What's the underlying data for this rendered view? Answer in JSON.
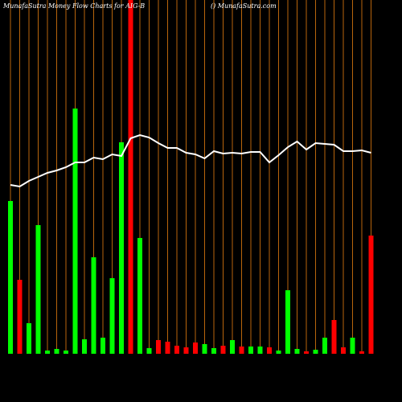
{
  "chart_data": {
    "type": "bar",
    "title": "MunafaSutra  Money Flow  Charts for AIG-B",
    "subtitle": "() MunafaSutra.com",
    "values": [
      190,
      92,
      38,
      160,
      4,
      6,
      4,
      305,
      18,
      120,
      20,
      94,
      263,
      445,
      144,
      7,
      17,
      15,
      10,
      8,
      14,
      12,
      7,
      10,
      17,
      9,
      9,
      9,
      8,
      4,
      79,
      6,
      3,
      5,
      20,
      42,
      8,
      20,
      3,
      147
    ],
    "colors": [
      "#00ff00",
      "#ff0000",
      "#00ff00",
      "#00ff00",
      "#00ff00",
      "#00ff00",
      "#00ff00",
      "#00ff00",
      "#00ff00",
      "#00ff00",
      "#00ff00",
      "#00ff00",
      "#00ff00",
      "#ff0000",
      "#00ff00",
      "#00ff00",
      "#ff0000",
      "#ff0000",
      "#ff0000",
      "#ff0000",
      "#ff0000",
      "#00ff00",
      "#00ff00",
      "#ff0000",
      "#00ff00",
      "#ff0000",
      "#00ff00",
      "#00ff00",
      "#ff0000",
      "#00ff00",
      "#00ff00",
      "#00ff00",
      "#ff0000",
      "#00ff00",
      "#00ff00",
      "#ff0000",
      "#ff0000",
      "#00ff00",
      "#ff0000",
      "#ff0000"
    ],
    "line_values": [
      210,
      208,
      215,
      220,
      225,
      228,
      232,
      238,
      238,
      244,
      242,
      248,
      246,
      268,
      272,
      269,
      262,
      256,
      256,
      250,
      248,
      243,
      252,
      249,
      250,
      249,
      251,
      251,
      238,
      247,
      257,
      264,
      254,
      262,
      261,
      260,
      252,
      252,
      253,
      250
    ],
    "line_color": "#ffffff",
    "grid_color": "#b8650c",
    "ylim": [
      0,
      440
    ]
  }
}
